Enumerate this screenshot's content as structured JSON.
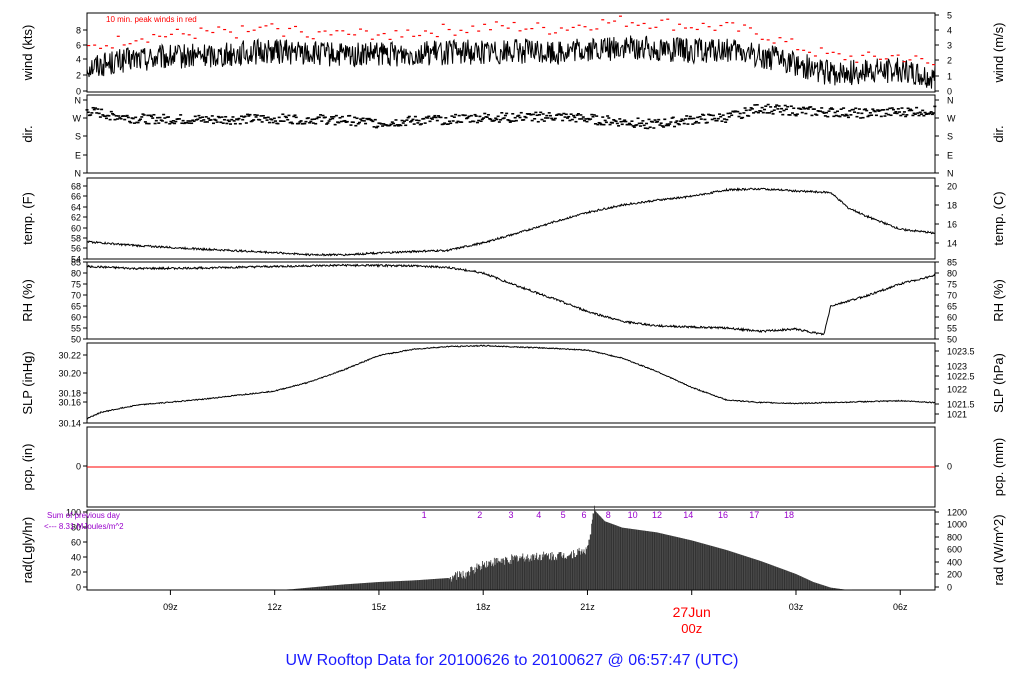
{
  "title": "UW Rooftop Data for 20100626  to  20100627 @ 06:57:47  (UTC)",
  "colors": {
    "series": "#000000",
    "peak_winds": "#ff0000",
    "precip_line": "#ff0000",
    "radiation_annotations": "#9900cc",
    "date_marker": "#ff0000",
    "title": "#1a1aff"
  },
  "chart_data": {
    "type": "line",
    "x_axis": {
      "unit": "hours UTC since 20100626 06z",
      "range": [
        6.6,
        31.0
      ],
      "tick_values": [
        9,
        12,
        15,
        18,
        21,
        24,
        27,
        30
      ],
      "tick_labels": [
        "09z",
        "12z",
        "15z",
        "18z",
        "21z",
        "",
        "03z",
        "06z"
      ],
      "date_marker": {
        "x": 24,
        "date": "27Jun",
        "hour": "00z"
      }
    },
    "panels": [
      {
        "id": "wind",
        "type": "line",
        "left_label": "wind (kts)",
        "right_label": "wind (m/s)",
        "left_ylim": [
          0,
          10
        ],
        "left_ticks": [
          "0",
          "2",
          "4",
          "6",
          "8"
        ],
        "right_ticks": [
          "0",
          "1",
          "2",
          "3",
          "4",
          "5"
        ],
        "annotation": "10 min. peak winds in red",
        "series": [
          {
            "name": "wind",
            "x": [
              6.6,
              8,
              10,
              12,
              14,
              16,
              18,
              19,
              20,
              21,
              22,
              23,
              24,
              25,
              26,
              27,
              28,
              29,
              30,
              31
            ],
            "y": [
              3.2,
              4.2,
              4.6,
              5.2,
              4.6,
              4.9,
              5.1,
              5.2,
              5.0,
              5.3,
              5.6,
              5.5,
              5.2,
              5.2,
              4.6,
              3.6,
              2.3,
              2.6,
              2.8,
              1.8
            ]
          },
          {
            "name": "10 min. peak winds",
            "x": [
              6.6,
              8,
              10,
              12,
              14,
              16,
              18,
              19,
              20,
              21,
              22,
              23,
              24,
              25,
              26,
              27,
              28,
              29,
              30,
              31
            ],
            "y": [
              5.5,
              7.0,
              7.5,
              8.0,
              7.3,
              7.6,
              8.2,
              8.3,
              8.0,
              8.6,
              9.0,
              8.8,
              8.4,
              8.2,
              7.4,
              5.8,
              4.6,
              4.3,
              4.6,
              3.4
            ]
          }
        ]
      },
      {
        "id": "dir",
        "type": "scatter",
        "left_label": "dir.",
        "right_label": "dir.",
        "left_ylim": [
          0,
          360
        ],
        "left_ticks": [
          "N",
          "E",
          "S",
          "W",
          "N"
        ],
        "right_ticks": [
          "N",
          "E",
          "S",
          "W",
          "N"
        ],
        "series": [
          {
            "name": "direction (deg)",
            "x": [
              6.6,
              8,
              10,
              12,
              14,
              15,
              16,
              18,
              20,
              21,
              22,
              23,
              24,
              25,
              26,
              27,
              28,
              29,
              30,
              31
            ],
            "y": [
              285,
              250,
              245,
              250,
              245,
              230,
              240,
              255,
              260,
              250,
              235,
              225,
              245,
              255,
              300,
              285,
              280,
              275,
              280,
              290
            ]
          }
        ]
      },
      {
        "id": "temp",
        "type": "line",
        "left_label": "temp. (F)",
        "right_label": "temp. (C)",
        "left_ylim": [
          54,
          69
        ],
        "left_ticks": [
          "54",
          "56",
          "58",
          "60",
          "62",
          "64",
          "66",
          "68"
        ],
        "right_ticks": [
          "14",
          "16",
          "18",
          "20"
        ],
        "series": [
          {
            "name": "temperature (F)",
            "x": [
              6.6,
              8,
              10,
              12,
              13,
              14,
              15,
              16,
              17,
              18,
              19,
              20,
              21,
              22,
              23,
              24,
              25,
              26,
              27,
              28,
              28.5,
              29,
              30,
              31
            ],
            "y": [
              57.2,
              56.5,
              55.8,
              55.2,
              54.8,
              54.8,
              55.1,
              55.4,
              55.6,
              57.0,
              58.8,
              60.8,
              62.6,
              64.0,
              64.9,
              65.6,
              66.8,
              67.0,
              66.6,
              66.3,
              63.5,
              62.0,
              59.5,
              58.8
            ]
          }
        ]
      },
      {
        "id": "rh",
        "type": "line",
        "left_label": "RH (%)",
        "right_label": "RH (%)",
        "left_ylim": [
          50,
          85
        ],
        "left_ticks": [
          "50",
          "55",
          "60",
          "65",
          "70",
          "75",
          "80",
          "85"
        ],
        "right_ticks": [
          "50",
          "55",
          "60",
          "65",
          "70",
          "75",
          "80",
          "85"
        ],
        "series": [
          {
            "name": "relative humidity (%)",
            "x": [
              6.6,
              8,
              10,
              12,
              14,
              16,
              17,
              18,
              19,
              20,
              21,
              22,
              23,
              24,
              25,
              26,
              27,
              27.8,
              28,
              29,
              30,
              31
            ],
            "y": [
              83,
              82,
              82.3,
              83,
              83.5,
              83.3,
              82.5,
              80,
              74,
              68.5,
              62.5,
              58,
              56,
              55.5,
              55,
              53.5,
              54.5,
              52,
              65,
              69.5,
              75,
              79
            ]
          }
        ]
      },
      {
        "id": "slp",
        "type": "line",
        "left_label": "SLP (inHg)",
        "right_label": "SLP (hPa)",
        "left_ylim": [
          30.14,
          30.23
        ],
        "left_ticks": [
          "30.14",
          "30.16",
          "30.18",
          "30.20",
          "30.22"
        ],
        "right_ticks": [
          "1021",
          "1021.5",
          "1022",
          "1022.5",
          "1023",
          "1023.5"
        ],
        "series": [
          {
            "name": "sea level pressure (inHg)",
            "x": [
              6.6,
              7,
              8,
              10,
              12,
              13,
              14,
              15,
              16,
              17,
              18,
              20,
              21,
              22,
              23,
              24,
              25,
              26,
              27,
              28,
              30,
              31
            ],
            "y": [
              30.145,
              30.152,
              30.16,
              30.167,
              30.176,
              30.186,
              30.2,
              30.216,
              30.223,
              30.226,
              30.227,
              30.224,
              30.222,
              30.213,
              30.198,
              30.18,
              30.166,
              30.163,
              30.162,
              30.163,
              30.165,
              30.163
            ]
          }
        ]
      },
      {
        "id": "pcp",
        "type": "line",
        "left_label": "pcp. (in)",
        "right_label": "pcp. (mm)",
        "left_ylim": [
          -1,
          1
        ],
        "left_ticks": [
          "0"
        ],
        "right_ticks": [
          "0"
        ],
        "series": [
          {
            "name": "precipitation (in)",
            "x": [
              6.6,
              31
            ],
            "y": [
              0,
              0
            ]
          }
        ]
      },
      {
        "id": "rad",
        "type": "area",
        "left_label": "rad(Lgly/hr)",
        "right_label": "rad (W/m^2)",
        "left_ylim": [
          0,
          100
        ],
        "left_ticks": [
          "0",
          "20",
          "40",
          "60",
          "80",
          "100"
        ],
        "right_ticks": [
          "0",
          "200",
          "400",
          "600",
          "800",
          "1000",
          "1200"
        ],
        "annotations": [
          "Sum of previous day",
          "<--- 8.31 MJoules/m^2"
        ],
        "hour_labels": [
          {
            "x": 16.3,
            "label": "1"
          },
          {
            "x": 17.9,
            "label": "2"
          },
          {
            "x": 18.8,
            "label": "3"
          },
          {
            "x": 19.6,
            "label": "4"
          },
          {
            "x": 20.3,
            "label": "5"
          },
          {
            "x": 20.9,
            "label": "6"
          },
          {
            "x": 21.6,
            "label": "8"
          },
          {
            "x": 22.3,
            "label": "10"
          },
          {
            "x": 23.0,
            "label": "12"
          },
          {
            "x": 23.9,
            "label": "14"
          },
          {
            "x": 24.9,
            "label": "16"
          },
          {
            "x": 25.8,
            "label": "17"
          },
          {
            "x": 26.8,
            "label": "18"
          }
        ],
        "series": [
          {
            "name": "solar radiation (Lgly/hr)",
            "x": [
              6.6,
              12.0,
              12.5,
              13,
              14,
              15,
              16,
              17,
              17.5,
              18,
              18.5,
              19,
              19.5,
              20,
              20.5,
              21,
              21.2,
              21.5,
              22,
              23,
              24,
              25,
              26,
              27,
              27.5,
              28,
              28.5,
              31
            ],
            "y": [
              0,
              0,
              1,
              3,
              7,
              10,
              12,
              15,
              20,
              32,
              36,
              40,
              42,
              42,
              44,
              50,
              100,
              86,
              78,
              72,
              62,
              50,
              36,
              20,
              10,
              3,
              0,
              0
            ]
          }
        ]
      }
    ]
  }
}
